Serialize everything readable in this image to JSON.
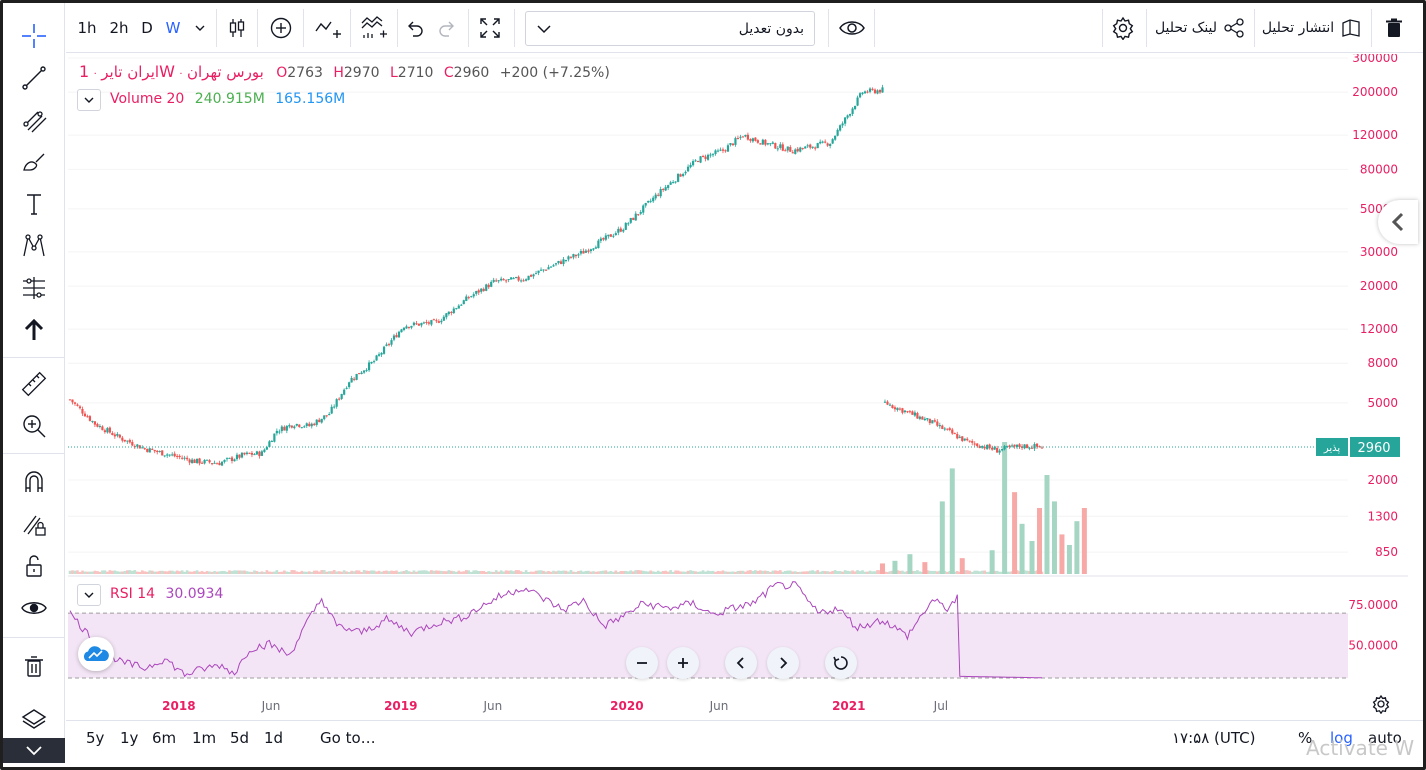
{
  "toolbar": {
    "intervals": [
      "1h",
      "2h",
      "D",
      "W"
    ],
    "active_interval": "W",
    "symbol_search_value": "بدون تعدیل",
    "publish_label": "انتشار تحلیل",
    "share_label": "لینک تحلیل"
  },
  "legend": {
    "symbol": "ایران تایر",
    "market": "بورس تهران",
    "interval": "1W",
    "sep": "·",
    "open_label": "O",
    "open": "2763",
    "high_label": "H",
    "high": "2970",
    "low_label": "L",
    "low": "2710",
    "close_label": "C",
    "close": "2960",
    "change": "+200 (+7.25%)",
    "volume_label": "Volume 20",
    "volume_value": "240.915M",
    "volume_ma": "165.156M",
    "rsi_label": "RSI 14",
    "rsi_value": "30.0934"
  },
  "price_scale": {
    "last_price": "2960",
    "last_price_tag": "پذیر",
    "mode_percent": "%",
    "mode_log": "log",
    "mode_auto": "auto"
  },
  "bottom": {
    "ranges": [
      "5y",
      "1y",
      "6m",
      "1m",
      "5d",
      "1d"
    ],
    "goto": "Go to…",
    "clock": "۱۷:۵۸ (UTC)"
  },
  "watermark": "Activate W",
  "colors": {
    "up": "#26a69a",
    "down": "#ef5350",
    "up_soft": "#a5d6c3",
    "down_soft": "#f7a9a8",
    "accent": "#2962ff",
    "legend_pink": "#e91e63",
    "volume_green": "#4caf50",
    "volume_blue": "#2196f3",
    "rsi_line": "#ab47bc",
    "rsi_band": "#f3e5f5"
  },
  "chart_data": {
    "type": "candlestick",
    "scale": "log",
    "price_axis_labels": [
      "300000",
      "200000",
      "120000",
      "80000",
      "50000",
      "30000",
      "20000",
      "12000",
      "8000",
      "5000",
      "2000",
      "1300",
      "850"
    ],
    "rsi_axis_labels": [
      "75.0000",
      "50.0000"
    ],
    "rsi_levels": [
      70,
      30
    ],
    "time_axis_labels": [
      {
        "label": "2018",
        "major": true
      },
      {
        "label": "Jun",
        "major": false
      },
      {
        "label": "2019",
        "major": true
      },
      {
        "label": "Jun",
        "major": false
      },
      {
        "label": "2020",
        "major": true
      },
      {
        "label": "Jun",
        "major": false
      },
      {
        "label": "2021",
        "major": true
      },
      {
        "label": "Jul",
        "major": false
      }
    ],
    "price_anchors": [
      [
        0,
        5200
      ],
      [
        10,
        3900
      ],
      [
        20,
        3300
      ],
      [
        30,
        2900
      ],
      [
        40,
        2700
      ],
      [
        50,
        2500
      ],
      [
        60,
        2450
      ],
      [
        70,
        2700
      ],
      [
        77,
        2750
      ],
      [
        83,
        3600
      ],
      [
        90,
        3900
      ],
      [
        96,
        3800
      ],
      [
        104,
        4400
      ],
      [
        112,
        6500
      ],
      [
        122,
        8200
      ],
      [
        134,
        12500
      ],
      [
        147,
        13000
      ],
      [
        160,
        17500
      ],
      [
        170,
        21000
      ],
      [
        182,
        21800
      ],
      [
        192,
        25000
      ],
      [
        206,
        30000
      ],
      [
        222,
        40000
      ],
      [
        236,
        60000
      ],
      [
        252,
        90000
      ],
      [
        262,
        100000
      ],
      [
        270,
        120000
      ],
      [
        278,
        110000
      ],
      [
        290,
        100000
      ],
      [
        305,
        110000
      ],
      [
        318,
        200000
      ],
      [
        326,
        205000
      ],
      [
        327,
        5000
      ],
      [
        345,
        4000
      ],
      [
        360,
        3150
      ],
      [
        372,
        2850
      ],
      [
        382,
        3000
      ],
      [
        390,
        2960
      ]
    ],
    "rsi_anchors": [
      [
        0,
        70
      ],
      [
        10,
        52
      ],
      [
        20,
        40
      ],
      [
        30,
        36
      ],
      [
        38,
        42
      ],
      [
        46,
        32
      ],
      [
        52,
        35
      ],
      [
        60,
        38
      ],
      [
        66,
        33
      ],
      [
        72,
        48
      ],
      [
        80,
        51
      ],
      [
        88,
        44
      ],
      [
        95,
        64
      ],
      [
        101,
        79
      ],
      [
        107,
        62
      ],
      [
        117,
        58
      ],
      [
        127,
        66
      ],
      [
        137,
        58
      ],
      [
        147,
        64
      ],
      [
        157,
        67
      ],
      [
        165,
        74
      ],
      [
        172,
        80
      ],
      [
        182,
        86
      ],
      [
        190,
        79
      ],
      [
        198,
        72
      ],
      [
        206,
        78
      ],
      [
        214,
        62
      ],
      [
        222,
        68
      ],
      [
        230,
        76
      ],
      [
        240,
        73
      ],
      [
        250,
        76
      ],
      [
        258,
        69
      ],
      [
        266,
        73
      ],
      [
        274,
        76
      ],
      [
        283,
        87
      ],
      [
        291,
        87
      ],
      [
        300,
        70
      ],
      [
        308,
        73
      ],
      [
        316,
        61
      ],
      [
        326,
        66
      ],
      [
        336,
        56
      ],
      [
        346,
        78
      ],
      [
        352,
        73
      ],
      [
        356,
        79
      ],
      [
        357,
        31
      ],
      [
        390,
        30.09
      ]
    ],
    "volume_spikes": [
      [
        326,
        0.08
      ],
      [
        331,
        0.1
      ],
      [
        337,
        0.15
      ],
      [
        343,
        0.09
      ],
      [
        350,
        0.55
      ],
      [
        354,
        0.8
      ],
      [
        358,
        0.12
      ],
      [
        370,
        0.18
      ],
      [
        375,
        1.0
      ],
      [
        379,
        0.62
      ],
      [
        382,
        0.38
      ],
      [
        386,
        0.25
      ],
      [
        389,
        0.5
      ],
      [
        392,
        0.75
      ],
      [
        395,
        0.55
      ],
      [
        398,
        0.3
      ],
      [
        401,
        0.22
      ],
      [
        404,
        0.4
      ],
      [
        407,
        0.5
      ]
    ]
  }
}
